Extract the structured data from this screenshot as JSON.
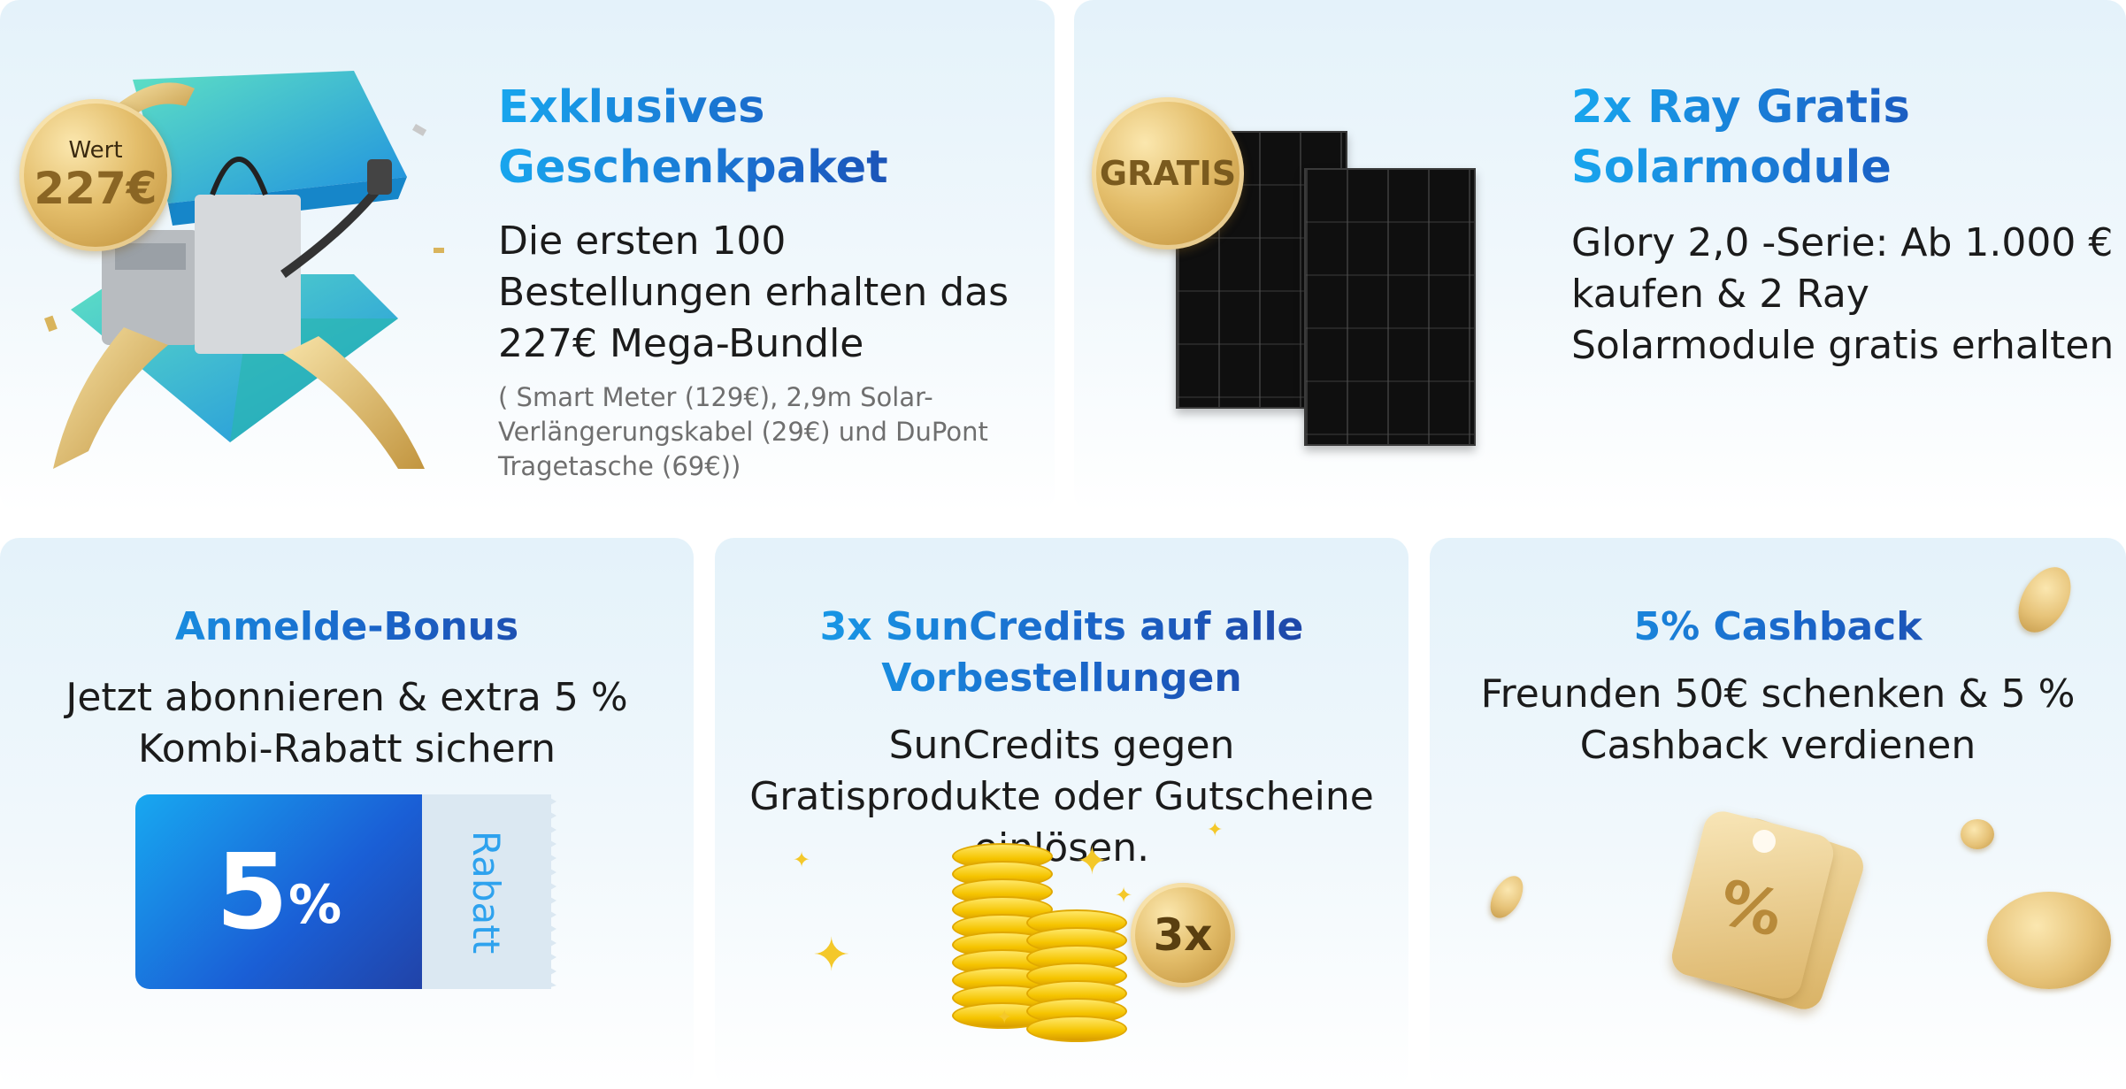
{
  "gift": {
    "title_line1": "Exklusives",
    "title_line2": "Geschenkpaket",
    "desc": "Die ersten 100 Bestellungen erhalten das 227€ Mega-Bundle",
    "note": "( Smart Meter (129€), 2,9m Solar-Verlängerungskabel (29€) und DuPont Tragetasche (69€))",
    "badge_top": "Wert",
    "badge_value": "227€"
  },
  "solar": {
    "title_line1": "2x Ray Gratis",
    "title_line2": "Solarmodule",
    "desc": "Glory 2,0 -Serie: Ab 1.000 € kaufen & 2 Ray Solarmodule gratis erhalten",
    "badge": "GRATIS"
  },
  "signup": {
    "title": "Anmelde-Bonus",
    "desc": "Jetzt abonnieren & extra 5 % Kombi-Rabatt sichern",
    "coupon_value": "5",
    "coupon_unit": "%",
    "coupon_label": "Rabatt"
  },
  "suncredits": {
    "title": "3x SunCredits auf alle Vorbestellungen",
    "desc": "SunCredits gegen Gratisprodukte oder Gutscheine einlösen.",
    "badge": "3x"
  },
  "cashback": {
    "title": "5% Cashback",
    "desc": "Freunden 50€ schenken & 5 % Cashback verdienen",
    "tag_symbol": "%"
  },
  "colors": {
    "title_gradient_start": "#18a6ee",
    "title_gradient_end": "#203c9c",
    "gold": "#d4ab57",
    "coupon_blue": "#1a5fd6",
    "coupon_stub": "#dbe8f2"
  }
}
